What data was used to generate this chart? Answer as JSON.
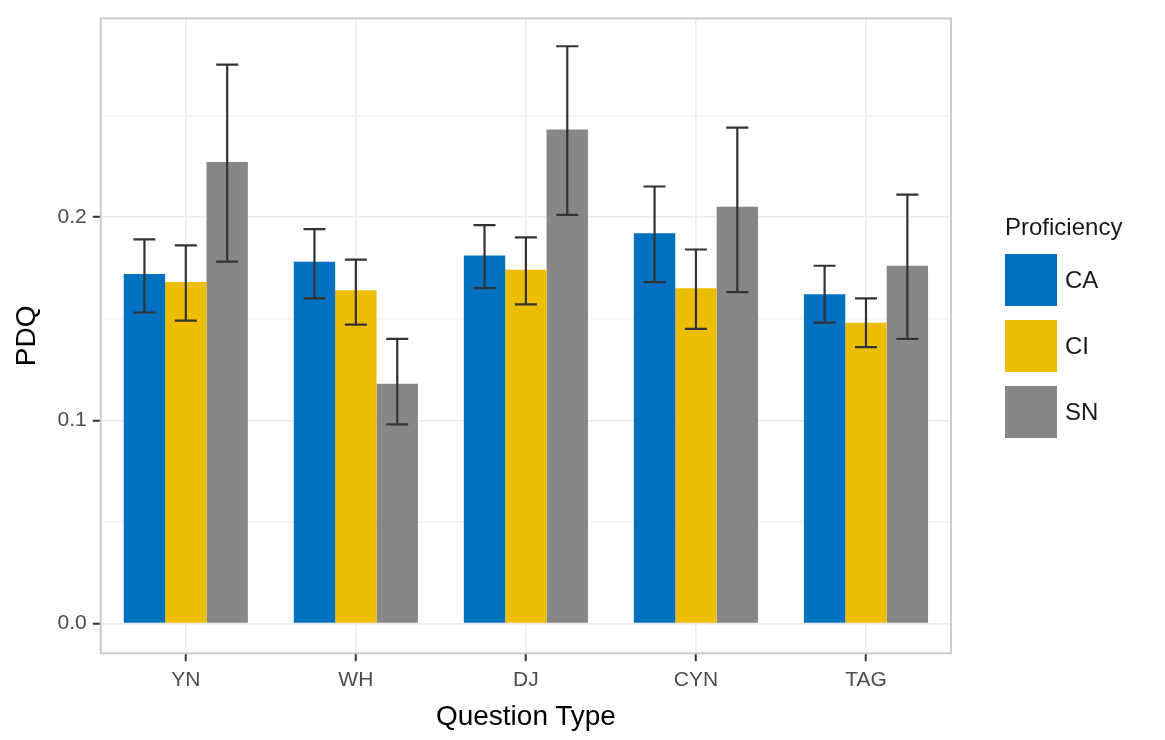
{
  "chart_data": {
    "type": "bar",
    "xlabel": "Question Type",
    "ylabel": "PDQ",
    "legend_title": "Proficiency",
    "legend": "right",
    "categories": [
      "YN",
      "WH",
      "DJ",
      "CYN",
      "TAG"
    ],
    "series": [
      {
        "name": "CA",
        "color": "#0070c0",
        "values": [
          0.172,
          0.178,
          0.181,
          0.192,
          0.162
        ],
        "errors": [
          [
            0.153,
            0.189
          ],
          [
            0.16,
            0.194
          ],
          [
            0.165,
            0.196
          ],
          [
            0.168,
            0.215
          ],
          [
            0.148,
            0.176
          ]
        ]
      },
      {
        "name": "CI",
        "color": "#ecbd00",
        "values": [
          0.168,
          0.164,
          0.174,
          0.165,
          0.148
        ],
        "errors": [
          [
            0.149,
            0.186
          ],
          [
            0.147,
            0.179
          ],
          [
            0.157,
            0.19
          ],
          [
            0.145,
            0.184
          ],
          [
            0.136,
            0.16
          ]
        ]
      },
      {
        "name": "SN",
        "color": "#878787",
        "values": [
          0.227,
          0.118,
          0.243,
          0.205,
          0.176
        ],
        "errors": [
          [
            0.178,
            0.275
          ],
          [
            0.098,
            0.14
          ],
          [
            0.201,
            0.284
          ],
          [
            0.163,
            0.244
          ],
          [
            0.14,
            0.211
          ]
        ]
      }
    ],
    "ylim": [
      -0.0146,
      0.2976
    ],
    "yticks": [
      {
        "value": 0.0,
        "label": "0.0"
      },
      {
        "value": 0.05,
        "label": null
      },
      0.1,
      {
        "value": 0.15,
        "label": null
      },
      0.2,
      {
        "value": 0.25,
        "label": null
      }
    ],
    "grid": true
  }
}
